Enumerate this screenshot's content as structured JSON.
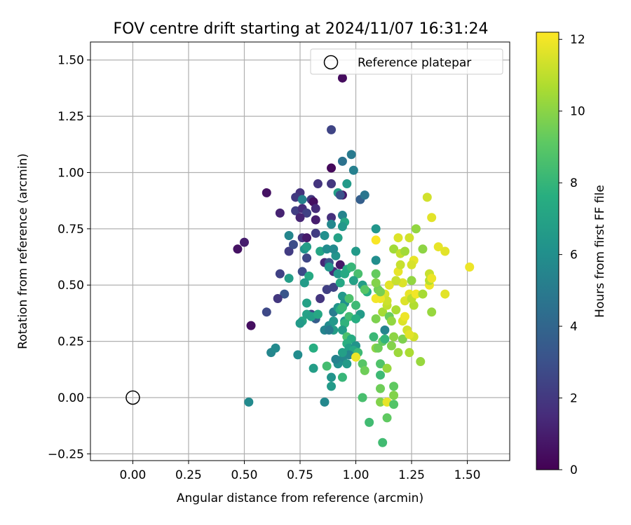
{
  "chart_data": {
    "type": "scatter",
    "title": "FOV centre drift starting at 2024/11/07 16:31:24",
    "xlabel": "Angular distance from reference (arcmin)",
    "ylabel": "Rotation from reference (arcmin)",
    "xlim": [
      -0.19,
      1.69
    ],
    "ylim": [
      -0.28,
      1.58
    ],
    "xticks": [
      "0.00",
      "0.25",
      "0.50",
      "0.75",
      "1.00",
      "1.25",
      "1.50"
    ],
    "xtick_values": [
      0,
      0.25,
      0.5,
      0.75,
      1.0,
      1.25,
      1.5
    ],
    "yticks": [
      "−0.25",
      "0.00",
      "0.25",
      "0.50",
      "0.75",
      "1.00",
      "1.25",
      "1.50"
    ],
    "ytick_values": [
      -0.25,
      0,
      0.25,
      0.5,
      0.75,
      1.0,
      1.25,
      1.5
    ],
    "grid": true,
    "legend": {
      "placement": "top-right",
      "label": "Reference platepar"
    },
    "reference_point": {
      "x": 0.0,
      "y": 0.0
    },
    "colorbar": {
      "label": "Hours from first FF file",
      "colormap": "viridis",
      "range": [
        0,
        12.2
      ],
      "ticks": [
        "0",
        "2",
        "4",
        "6",
        "8",
        "10",
        "12"
      ],
      "tick_values": [
        0,
        2,
        4,
        6,
        8,
        10,
        12
      ]
    },
    "points": [
      [
        0.94,
        1.42,
        0.4
      ],
      [
        0.89,
        1.19,
        2.5
      ],
      [
        0.89,
        1.02,
        0.3
      ],
      [
        0.6,
        0.91,
        0.6
      ],
      [
        0.75,
        0.91,
        1.8
      ],
      [
        0.66,
        0.82,
        1.2
      ],
      [
        0.83,
        0.95,
        1.9
      ],
      [
        0.8,
        0.88,
        2.0
      ],
      [
        0.73,
        0.89,
        2.1
      ],
      [
        0.81,
        0.87,
        0.5
      ],
      [
        0.73,
        0.83,
        2.3
      ],
      [
        0.76,
        0.84,
        1.6
      ],
      [
        0.78,
        0.82,
        2.4
      ],
      [
        0.82,
        0.84,
        1.5
      ],
      [
        0.75,
        0.8,
        1.3
      ],
      [
        0.82,
        0.79,
        1.0
      ],
      [
        0.89,
        0.8,
        1.7
      ],
      [
        0.89,
        0.95,
        2.0
      ],
      [
        0.94,
        0.9,
        0.8
      ],
      [
        0.5,
        0.69,
        1.0
      ],
      [
        0.47,
        0.66,
        0.6
      ],
      [
        0.7,
        0.65,
        2.2
      ],
      [
        0.72,
        0.68,
        2.9
      ],
      [
        0.76,
        0.71,
        1.9
      ],
      [
        0.78,
        0.71,
        0.9
      ],
      [
        0.82,
        0.73,
        2.2
      ],
      [
        0.78,
        0.62,
        2.6
      ],
      [
        0.86,
        0.6,
        1.4
      ],
      [
        0.93,
        0.59,
        0.8
      ],
      [
        0.66,
        0.55,
        2.4
      ],
      [
        0.68,
        0.46,
        3.3
      ],
      [
        0.65,
        0.44,
        2.0
      ],
      [
        0.6,
        0.38,
        2.7
      ],
      [
        0.53,
        0.32,
        0.5
      ],
      [
        0.84,
        0.44,
        1.9
      ],
      [
        0.87,
        0.48,
        2.3
      ],
      [
        0.9,
        0.49,
        2.5
      ],
      [
        0.88,
        0.6,
        3.2
      ],
      [
        0.9,
        0.56,
        1.6
      ],
      [
        0.76,
        0.56,
        2.8
      ],
      [
        0.8,
        0.37,
        2.6
      ],
      [
        0.82,
        0.35,
        3.6
      ],
      [
        0.98,
        1.08,
        5.0
      ],
      [
        0.94,
        1.05,
        4.6
      ],
      [
        0.96,
        0.95,
        6.6
      ],
      [
        0.99,
        1.01,
        5.3
      ],
      [
        0.92,
        0.91,
        6.9
      ],
      [
        0.93,
        0.9,
        3.1
      ],
      [
        1.02,
        0.88,
        3.7
      ],
      [
        1.04,
        0.9,
        4.8
      ],
      [
        0.76,
        0.88,
        5.4
      ],
      [
        0.89,
        0.77,
        5.7
      ],
      [
        0.94,
        0.81,
        5.5
      ],
      [
        0.95,
        0.78,
        7.2
      ],
      [
        0.94,
        0.76,
        6.5
      ],
      [
        0.86,
        0.72,
        6.1
      ],
      [
        0.7,
        0.72,
        5.6
      ],
      [
        0.92,
        0.71,
        7.0
      ],
      [
        0.77,
        0.66,
        6.2
      ],
      [
        0.78,
        0.67,
        6.8
      ],
      [
        0.84,
        0.65,
        7.2
      ],
      [
        0.87,
        0.66,
        5.9
      ],
      [
        0.91,
        0.63,
        6.3
      ],
      [
        0.9,
        0.66,
        5.8
      ],
      [
        1.0,
        0.65,
        6.6
      ],
      [
        1.09,
        0.75,
        6.4
      ],
      [
        1.09,
        0.61,
        6.0
      ],
      [
        0.88,
        0.58,
        6.4
      ],
      [
        0.96,
        0.57,
        7.6
      ],
      [
        0.98,
        0.58,
        8.1
      ],
      [
        0.92,
        0.55,
        6.5
      ],
      [
        0.95,
        0.55,
        7.4
      ],
      [
        1.01,
        0.55,
        8.6
      ],
      [
        0.79,
        0.54,
        7.4
      ],
      [
        0.77,
        0.51,
        6.7
      ],
      [
        0.7,
        0.53,
        6.8
      ],
      [
        0.93,
        0.51,
        7.3
      ],
      [
        0.99,
        0.52,
        7.0
      ],
      [
        1.03,
        0.5,
        6.8
      ],
      [
        1.05,
        0.47,
        7.6
      ],
      [
        1.04,
        0.48,
        9.0
      ],
      [
        1.1,
        0.48,
        9.5
      ],
      [
        0.94,
        0.45,
        6.5
      ],
      [
        0.95,
        0.42,
        6.1
      ],
      [
        0.97,
        0.44,
        8.7
      ],
      [
        1.0,
        0.41,
        8.3
      ],
      [
        1.02,
        0.37,
        6.7
      ],
      [
        0.78,
        0.42,
        7.0
      ],
      [
        0.78,
        0.37,
        7.0
      ],
      [
        0.8,
        0.36,
        6.9
      ],
      [
        0.76,
        0.34,
        7.2
      ],
      [
        0.75,
        0.33,
        6.6
      ],
      [
        0.83,
        0.37,
        7.3
      ],
      [
        0.88,
        0.32,
        5.9
      ],
      [
        0.9,
        0.34,
        6.5
      ],
      [
        0.9,
        0.38,
        5.1
      ],
      [
        0.92,
        0.4,
        6.3
      ],
      [
        0.93,
        0.39,
        7.7
      ],
      [
        0.94,
        0.4,
        8.1
      ],
      [
        0.95,
        0.34,
        6.2
      ],
      [
        0.97,
        0.36,
        8.4
      ],
      [
        1.0,
        0.35,
        7.6
      ],
      [
        0.9,
        0.3,
        6.8
      ],
      [
        0.86,
        0.3,
        5.5
      ],
      [
        0.88,
        0.3,
        5.0
      ],
      [
        0.95,
        0.33,
        7.9
      ],
      [
        0.94,
        0.3,
        6.8
      ],
      [
        0.96,
        0.27,
        8.7
      ],
      [
        0.98,
        0.26,
        7.5
      ],
      [
        0.96,
        0.24,
        7.7
      ],
      [
        0.97,
        0.22,
        6.9
      ],
      [
        1.0,
        0.23,
        6.3
      ],
      [
        0.99,
        0.21,
        7.3
      ],
      [
        1.01,
        0.2,
        8.3
      ],
      [
        0.97,
        0.19,
        5.6
      ],
      [
        0.94,
        0.17,
        5.7
      ],
      [
        0.94,
        0.2,
        6.9
      ],
      [
        0.96,
        0.15,
        6.7
      ],
      [
        0.92,
        0.15,
        6.1
      ],
      [
        0.91,
        0.17,
        5.4
      ],
      [
        0.62,
        0.2,
        5.6
      ],
      [
        0.64,
        0.22,
        5.8
      ],
      [
        0.74,
        0.19,
        5.9
      ],
      [
        0.81,
        0.22,
        7.6
      ],
      [
        0.81,
        0.13,
        6.8
      ],
      [
        0.87,
        0.14,
        8.5
      ],
      [
        0.94,
        0.09,
        8.1
      ],
      [
        0.89,
        0.09,
        6.3
      ],
      [
        0.89,
        0.05,
        6.6
      ],
      [
        0.52,
        -0.02,
        5.8
      ],
      [
        0.86,
        -0.02,
        5.7
      ],
      [
        1.03,
        0.15,
        9.0
      ],
      [
        1.04,
        0.12,
        9.5
      ],
      [
        1.03,
        0.0,
        8.6
      ],
      [
        1.06,
        -0.11,
        8.4
      ],
      [
        1.11,
        0.1,
        8.3
      ],
      [
        1.11,
        0.04,
        9.5
      ],
      [
        1.11,
        -0.02,
        9.9
      ],
      [
        1.14,
        -0.09,
        9.2
      ],
      [
        1.12,
        -0.2,
        8.4
      ],
      [
        1.14,
        -0.02,
        11.8
      ],
      [
        1.17,
        0.01,
        9.9
      ],
      [
        1.17,
        0.05,
        9.2
      ],
      [
        1.17,
        -0.03,
        8.9
      ],
      [
        1.11,
        0.15,
        8.8
      ],
      [
        1.14,
        0.13,
        10.3
      ],
      [
        1.09,
        0.22,
        10.1
      ],
      [
        1.1,
        0.22,
        9.5
      ],
      [
        1.12,
        0.25,
        9.2
      ],
      [
        1.13,
        0.3,
        5.5
      ],
      [
        1.13,
        0.26,
        8.0
      ],
      [
        1.16,
        0.23,
        9.9
      ],
      [
        1.17,
        0.27,
        10.1
      ],
      [
        1.19,
        0.2,
        10.4
      ],
      [
        1.21,
        0.26,
        9.8
      ],
      [
        1.24,
        0.2,
        10.7
      ],
      [
        1.26,
        0.27,
        11.4
      ],
      [
        1.29,
        0.16,
        10.3
      ],
      [
        1.08,
        0.27,
        8.2
      ],
      [
        1.0,
        0.18,
        11.9
      ],
      [
        1.09,
        0.35,
        9.8
      ],
      [
        1.12,
        0.38,
        10.6
      ],
      [
        1.14,
        0.41,
        11.1
      ],
      [
        1.15,
        0.36,
        9.4
      ],
      [
        1.16,
        0.34,
        10.2
      ],
      [
        1.18,
        0.39,
        10.7
      ],
      [
        1.21,
        0.34,
        11.6
      ],
      [
        1.23,
        0.3,
        11.4
      ],
      [
        1.24,
        0.28,
        11.7
      ],
      [
        1.22,
        0.36,
        11.9
      ],
      [
        1.22,
        0.43,
        11.6
      ],
      [
        1.24,
        0.46,
        11.8
      ],
      [
        1.26,
        0.41,
        10.8
      ],
      [
        1.25,
        0.44,
        11.0
      ],
      [
        1.27,
        0.46,
        12.0
      ],
      [
        1.3,
        0.46,
        10.6
      ],
      [
        1.33,
        0.5,
        11.9
      ],
      [
        1.34,
        0.38,
        10.3
      ],
      [
        1.4,
        0.46,
        11.7
      ],
      [
        1.13,
        0.46,
        11.5
      ],
      [
        1.14,
        0.43,
        11.3
      ],
      [
        1.11,
        0.44,
        11.9
      ],
      [
        1.09,
        0.44,
        12.0
      ],
      [
        1.11,
        0.47,
        9.7
      ],
      [
        1.09,
        0.51,
        9.9
      ],
      [
        1.09,
        0.55,
        9.3
      ],
      [
        1.15,
        0.5,
        11.7
      ],
      [
        1.19,
        0.56,
        11.8
      ],
      [
        1.21,
        0.51,
        11.6
      ],
      [
        1.18,
        0.52,
        11.2
      ],
      [
        1.17,
        0.66,
        10.5
      ],
      [
        1.2,
        0.64,
        11.1
      ],
      [
        1.22,
        0.65,
        10.5
      ],
      [
        1.19,
        0.71,
        11.6
      ],
      [
        1.24,
        0.71,
        11.4
      ],
      [
        1.26,
        0.61,
        11.8
      ],
      [
        1.27,
        0.75,
        10.2
      ],
      [
        1.3,
        0.66,
        10.1
      ],
      [
        1.25,
        0.59,
        11.5
      ],
      [
        1.25,
        0.52,
        10.2
      ],
      [
        1.2,
        0.59,
        11.2
      ],
      [
        1.33,
        0.55,
        11.2
      ],
      [
        1.33,
        0.52,
        10.9
      ],
      [
        1.34,
        0.53,
        11.9
      ],
      [
        1.34,
        0.8,
        11.7
      ],
      [
        1.32,
        0.89,
        11.4
      ],
      [
        1.37,
        0.67,
        11.8
      ],
      [
        1.4,
        0.65,
        11.7
      ],
      [
        1.51,
        0.58,
        11.9
      ],
      [
        1.09,
        0.7,
        12.1
      ]
    ]
  }
}
